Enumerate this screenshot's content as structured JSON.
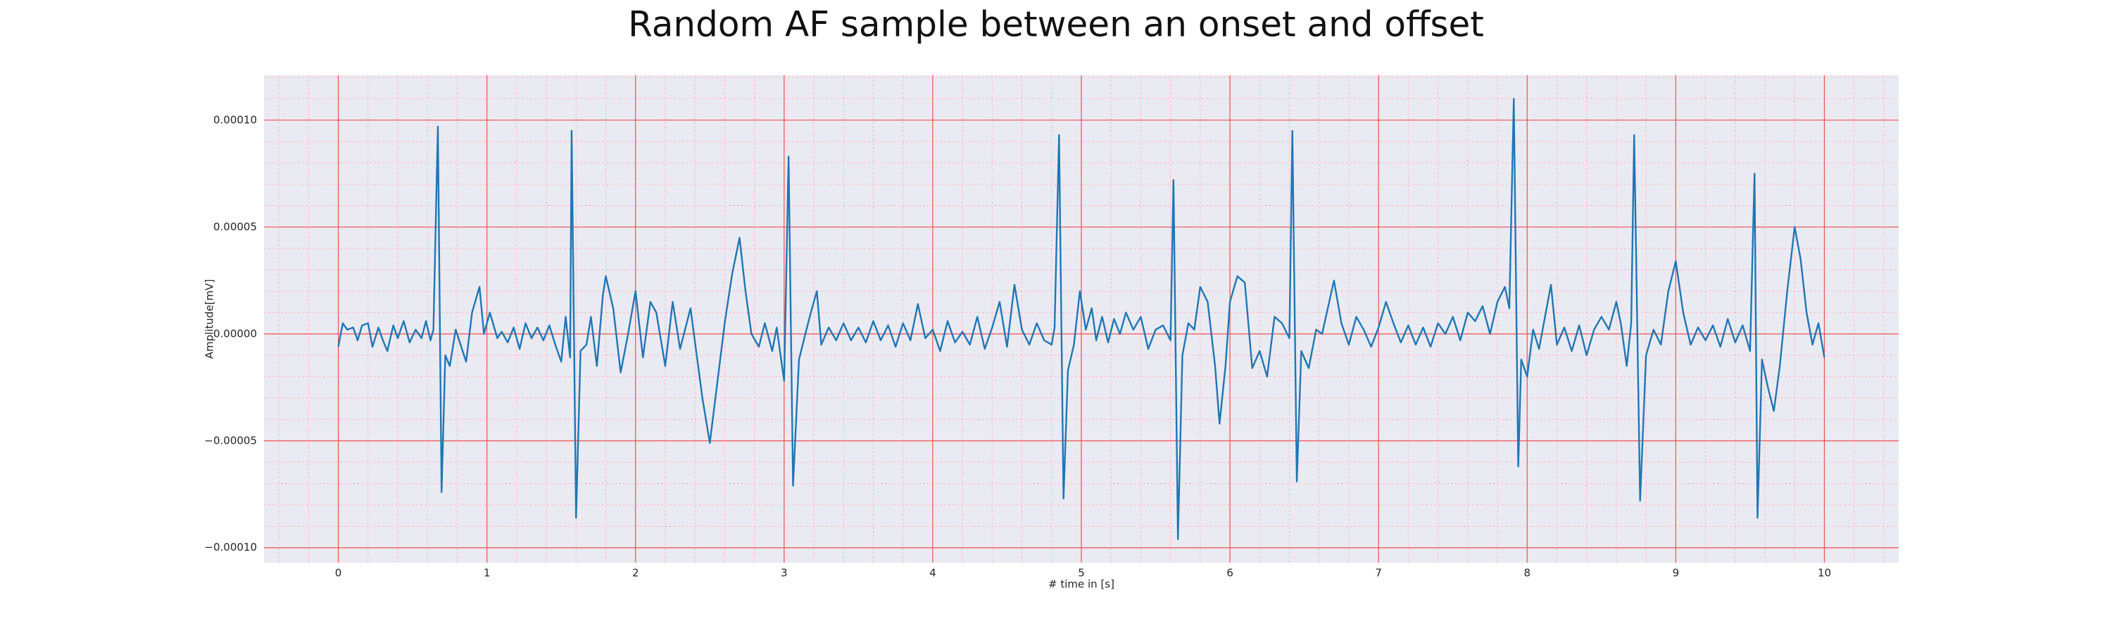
{
  "chart_data": {
    "type": "line",
    "title": "Random AF sample between an onset and offset",
    "x_label": "# time in [s]",
    "y_label": "Amplitude[mV]",
    "color": "#1f77b4",
    "grid": true,
    "minor_grid": true,
    "xlim": [
      -0.5,
      10.5
    ],
    "ylim": [
      -0.000107,
      0.000121
    ],
    "xticks": [
      0,
      1,
      2,
      3,
      4,
      5,
      6,
      7,
      8,
      9,
      10
    ],
    "yticks": [
      {
        "value": -0.0001,
        "label": "−0.00010"
      },
      {
        "value": -5e-05,
        "label": "−0.00005"
      },
      {
        "value": 0,
        "label": "0.00000"
      },
      {
        "value": 5e-05,
        "label": "0.00005"
      },
      {
        "value": 0.0001,
        "label": "0.00010"
      }
    ],
    "minor_xticks": [
      -0.4,
      -0.2,
      0.2,
      0.4,
      0.6,
      0.8,
      1.2,
      1.4,
      1.6,
      1.8,
      2.2,
      2.4,
      2.6,
      2.8,
      3.2,
      3.4,
      3.6,
      3.8,
      4.2,
      4.4,
      4.6,
      4.8,
      5.2,
      5.4,
      5.6,
      5.8,
      6.2,
      6.4,
      6.6,
      6.8,
      7.2,
      7.4,
      7.6,
      7.8,
      8.2,
      8.4,
      8.6,
      8.8,
      9.2,
      9.4,
      9.6,
      9.8,
      10.2,
      10.4
    ],
    "minor_yticks": [
      -9e-05,
      -8e-05,
      -7e-05,
      -6e-05,
      -4e-05,
      -3e-05,
      -2e-05,
      -1e-05,
      1e-05,
      2e-05,
      3e-05,
      4e-05,
      6e-05,
      7e-05,
      8e-05,
      9e-05,
      0.00011,
      0.00012
    ],
    "x": [
      0,
      0.03,
      0.06,
      0.1,
      0.13,
      0.16,
      0.2,
      0.23,
      0.27,
      0.3,
      0.33,
      0.37,
      0.4,
      0.44,
      0.48,
      0.52,
      0.56,
      0.59,
      0.62,
      0.64,
      0.67,
      0.695,
      0.72,
      0.75,
      0.79,
      0.86,
      0.9,
      0.95,
      0.98,
      1.02,
      1.07,
      1.1,
      1.14,
      1.18,
      1.22,
      1.26,
      1.3,
      1.34,
      1.38,
      1.42,
      1.46,
      1.5,
      1.53,
      1.56,
      1.57,
      1.6,
      1.63,
      1.67,
      1.7,
      1.74,
      1.78,
      1.8,
      1.85,
      1.9,
      1.95,
      2.0,
      2.05,
      2.1,
      2.14,
      2.2,
      2.25,
      2.3,
      2.37,
      2.45,
      2.5,
      2.6,
      2.65,
      2.7,
      2.74,
      2.78,
      2.83,
      2.87,
      2.92,
      2.95,
      3.0,
      3.03,
      3.06,
      3.1,
      3.15,
      3.18,
      3.22,
      3.25,
      3.3,
      3.35,
      3.4,
      3.45,
      3.5,
      3.55,
      3.6,
      3.65,
      3.7,
      3.75,
      3.8,
      3.85,
      3.9,
      3.95,
      4.0,
      4.05,
      4.1,
      4.15,
      4.2,
      4.25,
      4.3,
      4.35,
      4.4,
      4.45,
      4.5,
      4.55,
      4.6,
      4.65,
      4.7,
      4.75,
      4.8,
      4.82,
      4.85,
      4.88,
      4.91,
      4.95,
      4.99,
      5.03,
      5.07,
      5.1,
      5.14,
      5.18,
      5.22,
      5.26,
      5.3,
      5.35,
      5.4,
      5.45,
      5.5,
      5.55,
      5.6,
      5.62,
      5.65,
      5.68,
      5.72,
      5.76,
      5.8,
      5.85,
      5.9,
      5.93,
      5.97,
      6.0,
      6.05,
      6.1,
      6.15,
      6.2,
      6.25,
      6.3,
      6.35,
      6.4,
      6.42,
      6.45,
      6.48,
      6.53,
      6.58,
      6.62,
      6.7,
      6.75,
      6.8,
      6.85,
      6.9,
      6.95,
      7.0,
      7.05,
      7.1,
      7.15,
      7.2,
      7.25,
      7.3,
      7.35,
      7.4,
      7.45,
      7.5,
      7.55,
      7.6,
      7.65,
      7.7,
      7.75,
      7.8,
      7.85,
      7.88,
      7.91,
      7.94,
      7.96,
      8.0,
      8.04,
      8.08,
      8.12,
      8.16,
      8.2,
      8.25,
      8.3,
      8.35,
      8.4,
      8.45,
      8.5,
      8.55,
      8.6,
      8.63,
      8.67,
      8.7,
      8.72,
      8.76,
      8.8,
      8.85,
      8.9,
      8.95,
      9.0,
      9.05,
      9.1,
      9.15,
      9.2,
      9.25,
      9.3,
      9.35,
      9.4,
      9.45,
      9.5,
      9.53,
      9.55,
      9.58,
      9.62,
      9.66,
      9.7,
      9.75,
      9.8,
      9.84,
      9.88,
      9.92,
      9.96,
      10.0
    ],
    "values": [
      -6e-06,
      5e-06,
      2e-06,
      3e-06,
      -3e-06,
      4e-06,
      5e-06,
      -6e-06,
      3e-06,
      -3e-06,
      -8e-06,
      4e-06,
      -2e-06,
      6e-06,
      -4e-06,
      2e-06,
      -2e-06,
      6e-06,
      -3e-06,
      2e-06,
      9.7e-05,
      -7.4e-05,
      -1e-05,
      -1.5e-05,
      2e-06,
      -1.3e-05,
      1e-05,
      2.2e-05,
      0,
      1e-05,
      -2e-06,
      1e-06,
      -4e-06,
      3e-06,
      -7e-06,
      5e-06,
      -2e-06,
      3e-06,
      -3e-06,
      4e-06,
      -5e-06,
      -1.3e-05,
      8e-06,
      -1.1e-05,
      9.5e-05,
      -8.6e-05,
      -8e-06,
      -5e-06,
      8e-06,
      -1.5e-05,
      1.8e-05,
      2.7e-05,
      1.2e-05,
      -1.8e-05,
      0,
      2e-05,
      -1.1e-05,
      1.5e-05,
      1e-05,
      -1.5e-05,
      1.5e-05,
      -7e-06,
      1.2e-05,
      -3e-05,
      -5.1e-05,
      5e-06,
      2.8e-05,
      4.5e-05,
      2e-05,
      0,
      -6e-06,
      5e-06,
      -8e-06,
      3e-06,
      -2.2e-05,
      8.3e-05,
      -7.1e-05,
      -1.2e-05,
      2e-06,
      1e-05,
      2e-05,
      -5e-06,
      3e-06,
      -3e-06,
      5e-06,
      -3e-06,
      3e-06,
      -4e-06,
      6e-06,
      -3e-06,
      4e-06,
      -6e-06,
      5e-06,
      -3e-06,
      1.4e-05,
      -2e-06,
      2e-06,
      -8e-06,
      6e-06,
      -4e-06,
      1e-06,
      -5e-06,
      8e-06,
      -7e-06,
      3e-06,
      1.5e-05,
      -6e-06,
      2.3e-05,
      2e-06,
      -5e-06,
      5e-06,
      -3e-06,
      -5e-06,
      3e-06,
      9.3e-05,
      -7.7e-05,
      -1.7e-05,
      -5e-06,
      2e-05,
      2e-06,
      1.2e-05,
      -3e-06,
      8e-06,
      -4e-06,
      7e-06,
      0,
      1e-05,
      2e-06,
      8e-06,
      -7e-06,
      2e-06,
      4e-06,
      -3e-06,
      7.2e-05,
      -9.6e-05,
      -1e-05,
      5e-06,
      2e-06,
      2.2e-05,
      1.5e-05,
      -1.5e-05,
      -4.2e-05,
      -1.5e-05,
      1.5e-05,
      2.7e-05,
      2.4e-05,
      -1.6e-05,
      -8e-06,
      -2e-05,
      8e-06,
      5e-06,
      -2e-06,
      9.5e-05,
      -6.9e-05,
      -8e-06,
      -1.6e-05,
      2e-06,
      0,
      2.5e-05,
      5e-06,
      -5e-06,
      8e-06,
      2e-06,
      -6e-06,
      3e-06,
      1.5e-05,
      5e-06,
      -4e-06,
      4e-06,
      -5e-06,
      3e-06,
      -6e-06,
      5e-06,
      0,
      8e-06,
      -3e-06,
      1e-05,
      6e-06,
      1.3e-05,
      0,
      1.5e-05,
      2.2e-05,
      1.2e-05,
      0.00011,
      -6.2e-05,
      -1.2e-05,
      -2e-05,
      2e-06,
      -7e-06,
      8e-06,
      2.3e-05,
      -5e-06,
      3e-06,
      -8e-06,
      4e-06,
      -1e-05,
      2e-06,
      8e-06,
      2e-06,
      1.5e-05,
      5e-06,
      -1.5e-05,
      5e-06,
      9.3e-05,
      -7.8e-05,
      -1e-05,
      2e-06,
      -5e-06,
      2e-05,
      3.4e-05,
      1e-05,
      -5e-06,
      3e-06,
      -3e-06,
      4e-06,
      -6e-06,
      7e-06,
      -4e-06,
      4e-06,
      -8e-06,
      7.5e-05,
      -8.6e-05,
      -1.2e-05,
      -2.5e-05,
      -3.6e-05,
      -1.5e-05,
      2e-05,
      5e-05,
      3.5e-05,
      1e-05,
      -5e-06,
      5e-06,
      -1.1e-05
    ]
  }
}
